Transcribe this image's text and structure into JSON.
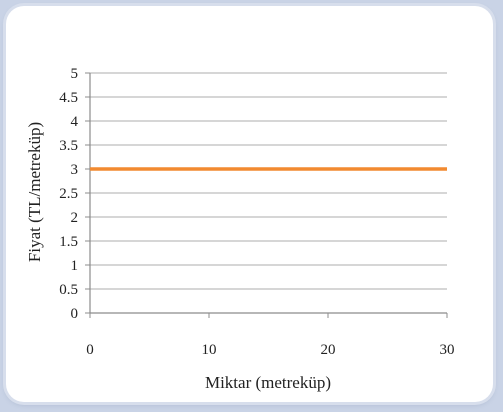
{
  "chart_data": {
    "type": "line",
    "title": "",
    "xlabel": "Miktar  (metreküp)",
    "ylabel": "Fiyat (TL/metreküp)",
    "xlim": [
      0,
      30
    ],
    "ylim": [
      0,
      5
    ],
    "x_ticks": [
      "0",
      "10",
      "20",
      "30"
    ],
    "y_ticks": [
      "0",
      "0.5",
      "1",
      "1.5",
      "2",
      "2.5",
      "3",
      "3.5",
      "4",
      "4.5",
      "5"
    ],
    "grid": "horizontal",
    "legend": "none",
    "series": [
      {
        "x": [
          0,
          30
        ],
        "y": [
          3,
          3
        ],
        "color": "#f28a30"
      }
    ],
    "colors": {
      "line": "#f28a30",
      "grid": "#bdbdbd",
      "axis": "#8c8c8c",
      "background": "#c9d3e6"
    }
  }
}
